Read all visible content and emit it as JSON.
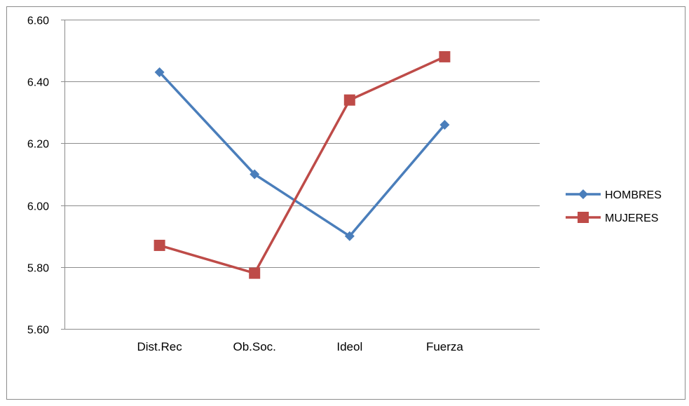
{
  "chart_data": {
    "type": "line",
    "categories": [
      "Dist.Rec",
      "Ob.Soc.",
      "Ideol",
      "Fuerza"
    ],
    "series": [
      {
        "name": "HOMBRES",
        "values": [
          6.43,
          6.1,
          5.9,
          6.26
        ],
        "color": "#4a7ebb",
        "marker": "diamond"
      },
      {
        "name": "MUJERES",
        "values": [
          5.87,
          5.78,
          6.34,
          6.48
        ],
        "color": "#be4b48",
        "marker": "square"
      }
    ],
    "ylim": [
      5.6,
      6.6
    ],
    "yticks": [
      "5.60",
      "5.80",
      "6.00",
      "6.20",
      "6.40",
      "6.60"
    ],
    "grid": true,
    "legend": "right",
    "title": "",
    "xlabel": "",
    "ylabel": ""
  }
}
